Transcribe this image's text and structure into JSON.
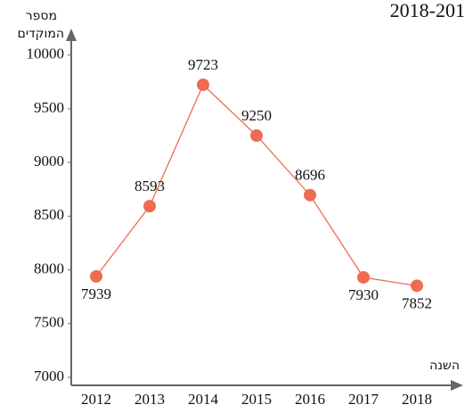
{
  "chart_data": {
    "type": "line",
    "title": "2018-201",
    "y_label": [
      "מספר",
      "המוקדים"
    ],
    "x_label": "השנה",
    "categories": [
      "2012",
      "2013",
      "2014",
      "2015",
      "2016",
      "2017",
      "2018"
    ],
    "series": [
      {
        "name": "מספר המוקדים",
        "color": "#ef6b52",
        "values": [
          7939,
          8593,
          9723,
          9250,
          8696,
          7930,
          7852
        ]
      }
    ],
    "ylim": [
      6925,
      10180
    ],
    "yticks": [
      7000,
      7500,
      8000,
      8500,
      9000,
      9500,
      10000
    ],
    "grid": false
  }
}
